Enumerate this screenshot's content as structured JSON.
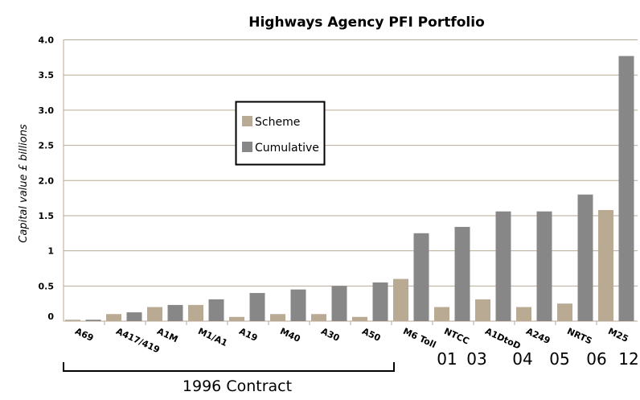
{
  "chart_data": {
    "type": "bar",
    "title": "Highways Agency PFI Portfolio",
    "xlabel": "",
    "ylabel": "Capital value £ billions",
    "ylim": [
      0,
      4.0
    ],
    "yticks": [
      "0",
      "0.5",
      "1",
      "1.5",
      "2.0",
      "2.5",
      "3.0",
      "3.5",
      "4.0"
    ],
    "grid": true,
    "legend_position": "upper-left-center",
    "categories": [
      "A69",
      "A417/419",
      "A1M",
      "M1/A1",
      "A19",
      "M40",
      "A30",
      "A50",
      "M6 Toll",
      "NTCC",
      "A1DtoD",
      "A249",
      "NRTS",
      "M25"
    ],
    "series": [
      {
        "name": "Scheme",
        "color": "#b9aa94",
        "values": [
          0.02,
          0.1,
          0.2,
          0.23,
          0.06,
          0.1,
          0.1,
          0.06,
          0.6,
          0.2,
          0.31,
          0.2,
          0.25,
          1.58
        ]
      },
      {
        "name": "Cumulative",
        "color": "#878787",
        "values": [
          0.02,
          0.125,
          0.23,
          0.31,
          0.4,
          0.45,
          0.5,
          0.55,
          1.25,
          1.34,
          1.56,
          1.56,
          1.8,
          3.77
        ]
      }
    ],
    "annotations": {
      "years": [
        "01",
        "03",
        "04",
        "05",
        "06",
        "12"
      ],
      "bracket_label": "1996 Contract"
    }
  }
}
